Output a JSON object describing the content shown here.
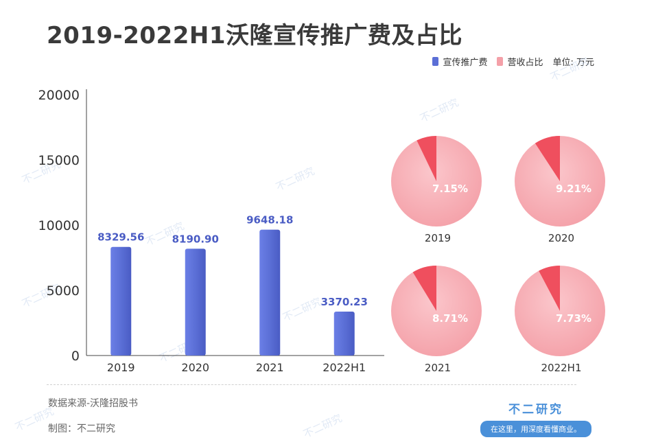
{
  "title": "2019-2022H1沃隆宣传推广费及占比",
  "legend": {
    "series1": "宣传推广费",
    "series2": "营收占比",
    "unit": "单位: 万元",
    "color1": "#5b6fd6",
    "color2": "#f4a0a8"
  },
  "chart_data": [
    {
      "type": "bar",
      "categories": [
        "2019",
        "2020",
        "2021",
        "2022H1"
      ],
      "series": [
        {
          "name": "宣传推广费",
          "values": [
            8329.56,
            8190.9,
            9648.18,
            3370.23
          ]
        }
      ],
      "data_labels": [
        "8329.56",
        "8190.90",
        "9648.18",
        "3370.23"
      ],
      "yticks": [
        "0",
        "5000",
        "10000",
        "15000",
        "20000"
      ],
      "ylim": [
        0,
        20000
      ],
      "grid": false
    },
    {
      "type": "pie",
      "series_name": "营收占比",
      "pies": [
        {
          "label": "2019",
          "value": 7.15,
          "text": "7.15%"
        },
        {
          "label": "2020",
          "value": 9.21,
          "text": "9.21%"
        },
        {
          "label": "2021",
          "value": 8.71,
          "text": "8.71%"
        },
        {
          "label": "2022H1",
          "value": 7.73,
          "text": "7.73%"
        }
      ]
    }
  ],
  "footer": {
    "source": "数据来源-沃隆招股书",
    "author": "制图：不二研究"
  },
  "brand": {
    "name": "不二研究",
    "slogan": "在这里，用深度看懂商业。"
  },
  "watermark_text": "不二研究"
}
